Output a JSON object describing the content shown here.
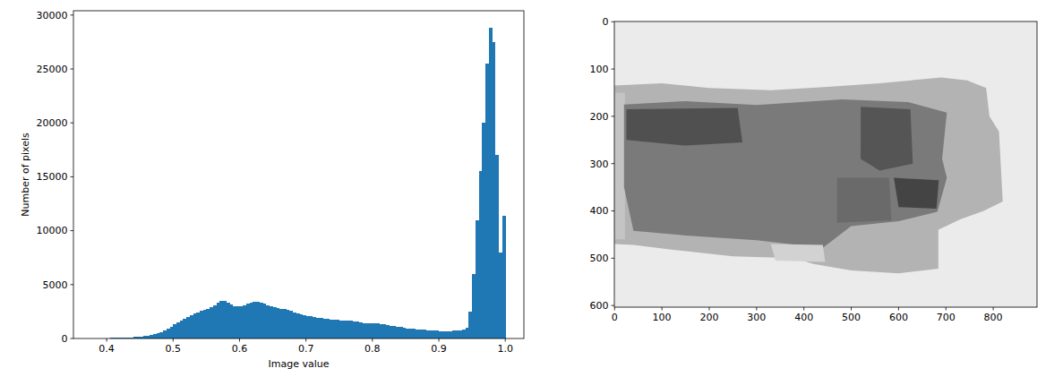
{
  "chart_data": [
    {
      "type": "histogram",
      "xlabel": "Image value",
      "ylabel": "Number of pixels",
      "color": "#1f77b4",
      "bins": [
        0.37,
        0.375,
        0.38,
        0.385,
        0.39,
        0.395,
        0.4,
        0.405,
        0.41,
        0.415,
        0.42,
        0.425,
        0.43,
        0.435,
        0.44,
        0.445,
        0.45,
        0.455,
        0.46,
        0.465,
        0.47,
        0.475,
        0.48,
        0.485,
        0.49,
        0.495,
        0.5,
        0.505,
        0.51,
        0.515,
        0.52,
        0.525,
        0.53,
        0.535,
        0.54,
        0.545,
        0.55,
        0.555,
        0.56,
        0.565,
        0.57,
        0.575,
        0.58,
        0.585,
        0.59,
        0.595,
        0.6,
        0.605,
        0.61,
        0.615,
        0.62,
        0.625,
        0.63,
        0.635,
        0.64,
        0.645,
        0.65,
        0.655,
        0.66,
        0.665,
        0.67,
        0.675,
        0.68,
        0.685,
        0.69,
        0.695,
        0.7,
        0.705,
        0.71,
        0.715,
        0.72,
        0.725,
        0.73,
        0.735,
        0.74,
        0.745,
        0.75,
        0.755,
        0.76,
        0.765,
        0.77,
        0.775,
        0.78,
        0.785,
        0.79,
        0.795,
        0.8,
        0.805,
        0.81,
        0.815,
        0.82,
        0.825,
        0.83,
        0.835,
        0.84,
        0.845,
        0.85,
        0.855,
        0.86,
        0.865,
        0.87,
        0.875,
        0.88,
        0.885,
        0.89,
        0.895,
        0.9,
        0.905,
        0.91,
        0.915,
        0.92,
        0.925,
        0.93,
        0.935,
        0.94,
        0.945,
        0.95,
        0.955,
        0.96,
        0.965,
        0.97,
        0.975,
        0.98,
        0.985,
        0.99,
        0.995,
        1.0
      ],
      "values": [
        10,
        15,
        20,
        25,
        30,
        35,
        40,
        50,
        60,
        70,
        80,
        90,
        100,
        110,
        130,
        150,
        180,
        210,
        250,
        300,
        380,
        480,
        600,
        750,
        900,
        1100,
        1300,
        1500,
        1700,
        1850,
        2000,
        2150,
        2300,
        2450,
        2550,
        2650,
        2750,
        2900,
        3100,
        3350,
        3500,
        3450,
        3300,
        3150,
        3000,
        2950,
        2950,
        3050,
        3200,
        3300,
        3400,
        3400,
        3350,
        3250,
        3100,
        3000,
        2900,
        2800,
        2750,
        2700,
        2650,
        2550,
        2450,
        2350,
        2250,
        2150,
        2100,
        2050,
        2000,
        1950,
        1900,
        1850,
        1800,
        1780,
        1750,
        1720,
        1700,
        1680,
        1650,
        1620,
        1580,
        1550,
        1500,
        1450,
        1400,
        1380,
        1400,
        1380,
        1350,
        1300,
        1250,
        1200,
        1150,
        1100,
        1050,
        1000,
        950,
        920,
        880,
        850,
        820,
        800,
        780,
        760,
        740,
        720,
        700,
        690,
        690,
        700,
        710,
        730,
        760,
        800,
        1000,
        2500,
        6000,
        11000,
        15500,
        20000,
        25500,
        28800,
        27500,
        17000,
        8000,
        11400
      ],
      "xlim": [
        0.35,
        1.028
      ],
      "ylim": [
        0,
        30400
      ],
      "xticks": [
        0.4,
        0.5,
        0.6,
        0.7,
        0.8,
        0.9,
        {
          "value": 1,
          "label": "1.0"
        }
      ],
      "yticks": [
        0,
        5000,
        10000,
        15000,
        20000,
        25000,
        30000
      ]
    },
    {
      "type": "image",
      "xlim": [
        -0.5,
        892.5
      ],
      "ylim": [
        603.5,
        -0.5
      ],
      "xticks": [
        0,
        100,
        200,
        300,
        400,
        500,
        600,
        700,
        800
      ],
      "yticks": [
        0,
        100,
        200,
        300,
        400,
        500,
        600
      ]
    }
  ]
}
